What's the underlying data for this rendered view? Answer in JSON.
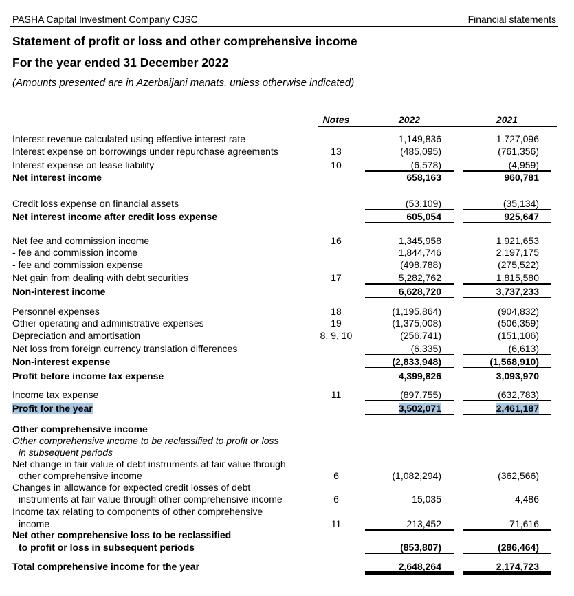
{
  "header": {
    "company": "PASHA Capital Investment Company CJSC",
    "section": "Financial statements",
    "title": "Statement of profit or loss and other comprehensive income",
    "period": "For the year ended 31 December 2022",
    "note": "(Amounts presented are in Azerbaijani manats, unless otherwise indicated)"
  },
  "columns": {
    "notes": "Notes",
    "y2022": "2022",
    "y2021": "2021"
  },
  "rows": [
    {
      "label": "Interest revenue calculated using effective interest rate",
      "note": "",
      "v2022": "1,149,836",
      "v2021": "1,727,096"
    },
    {
      "label": "Interest expense on borrowings under repurchase agreements",
      "note": "13",
      "v2022": "(485,095)",
      "v2021": "(761,356)"
    },
    {
      "label": "Interest expense on lease liability",
      "note": "10",
      "v2022": "(6,578)",
      "v2021": "(4,959)"
    },
    {
      "label": "Net interest income",
      "note": "",
      "v2022": "658,163",
      "v2021": "960,781"
    },
    {
      "label": "Credit loss expense on financial assets",
      "note": "",
      "v2022": "(53,109)",
      "v2021": "(35,134)"
    },
    {
      "label": "Net interest income after credit loss expense",
      "note": "",
      "v2022": "605,054",
      "v2021": "925,647"
    },
    {
      "label": "Net fee and commission income",
      "note": "16",
      "v2022": "1,345,958",
      "v2021": "1,921,653"
    },
    {
      "label": "- fee and commission income",
      "note": "",
      "v2022": "1,844,746",
      "v2021": "2,197,175"
    },
    {
      "label": "- fee and commission expense",
      "note": "",
      "v2022": "(498,788)",
      "v2021": "(275,522)"
    },
    {
      "label": "Net gain from dealing with debt securities",
      "note": "17",
      "v2022": "5,282,762",
      "v2021": "1,815,580"
    },
    {
      "label": "Non-interest income",
      "note": "",
      "v2022": "6,628,720",
      "v2021": "3,737,233"
    },
    {
      "label": "Personnel expenses",
      "note": "18",
      "v2022": "(1,195,864)",
      "v2021": "(904,832)"
    },
    {
      "label": "Other operating and administrative expenses",
      "note": "19",
      "v2022": "(1,375,008)",
      "v2021": "(506,359)"
    },
    {
      "label": "Depreciation and amortisation",
      "note": "8, 9, 10",
      "v2022": "(256,741)",
      "v2021": "(151,106)"
    },
    {
      "label": "Net loss from foreign currency translation differences",
      "note": "",
      "v2022": "(6,335)",
      "v2021": "(6,613)"
    },
    {
      "label": "Non-interest expense",
      "note": "",
      "v2022": "(2,833,948)",
      "v2021": "(1,568,910)"
    },
    {
      "label": "Profit before income tax expense",
      "note": "",
      "v2022": "4,399,826",
      "v2021": "3,093,970"
    },
    {
      "label": "Income tax expense",
      "note": "11",
      "v2022": "(897,755)",
      "v2021": "(632,783)"
    },
    {
      "label": "Profit for the year",
      "note": "",
      "v2022": "3,502,071",
      "v2021": "2,461,187"
    },
    {
      "label": "Other comprehensive income",
      "note": "",
      "v2022": "",
      "v2021": ""
    },
    {
      "label": "Other comprehensive income to be reclassified to profit or loss",
      "note": "",
      "v2022": "",
      "v2021": ""
    },
    {
      "label": "in subsequent periods",
      "note": "",
      "v2022": "",
      "v2021": ""
    },
    {
      "label": "Net change in fair value of debt instruments at fair value through",
      "note": "",
      "v2022": "",
      "v2021": ""
    },
    {
      "label": "other comprehensive income",
      "note": "6",
      "v2022": "(1,082,294)",
      "v2021": "(362,566)"
    },
    {
      "label": "Changes in allowance for expected credit losses of debt",
      "note": "",
      "v2022": "",
      "v2021": ""
    },
    {
      "label": "instruments at fair value through other comprehensive income",
      "note": "6",
      "v2022": "15,035",
      "v2021": "4,486"
    },
    {
      "label": "Income tax relating to components of other comprehensive",
      "note": "",
      "v2022": "",
      "v2021": ""
    },
    {
      "label": "income",
      "note": "11",
      "v2022": "213,452",
      "v2021": "71,616"
    },
    {
      "label": "Net other comprehensive loss to be reclassified",
      "note": "",
      "v2022": "",
      "v2021": ""
    },
    {
      "label": "to profit or loss in subsequent periods",
      "note": "",
      "v2022": "(853,807)",
      "v2021": "(286,464)"
    },
    {
      "label": "Total comprehensive income for the year",
      "note": "",
      "v2022": "2,648,264",
      "v2021": "2,174,723"
    }
  ],
  "colors": {
    "selection_highlight": "#a8c6e0"
  }
}
